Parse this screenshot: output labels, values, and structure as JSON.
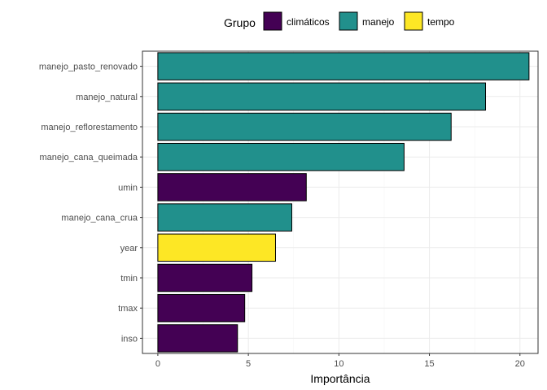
{
  "chart_data": {
    "type": "bar",
    "orientation": "horizontal",
    "title": "",
    "xlabel": "Importância",
    "ylabel": "",
    "xlim": [
      -0.85,
      21.0
    ],
    "x_ticks": [
      0,
      5,
      10,
      15,
      20
    ],
    "grid": true,
    "legend_position": "top",
    "legend": {
      "title": "Grupo",
      "entries": [
        {
          "label": "climáticos",
          "color": "#440154"
        },
        {
          "label": "manejo",
          "color": "#21908C"
        },
        {
          "label": "tempo",
          "color": "#FDE725"
        }
      ]
    },
    "categories": [
      "manejo_pasto_renovado",
      "manejo_natural",
      "manejo_reflorestamento",
      "manejo_cana_queimada",
      "umin",
      "manejo_cana_crua",
      "year",
      "tmin",
      "tmax",
      "inso"
    ],
    "values": [
      20.5,
      18.1,
      16.2,
      13.6,
      8.2,
      7.4,
      6.5,
      5.2,
      4.8,
      4.4
    ],
    "groups": [
      "manejo",
      "manejo",
      "manejo",
      "manejo",
      "climáticos",
      "manejo",
      "tempo",
      "climáticos",
      "climáticos",
      "climáticos"
    ]
  }
}
